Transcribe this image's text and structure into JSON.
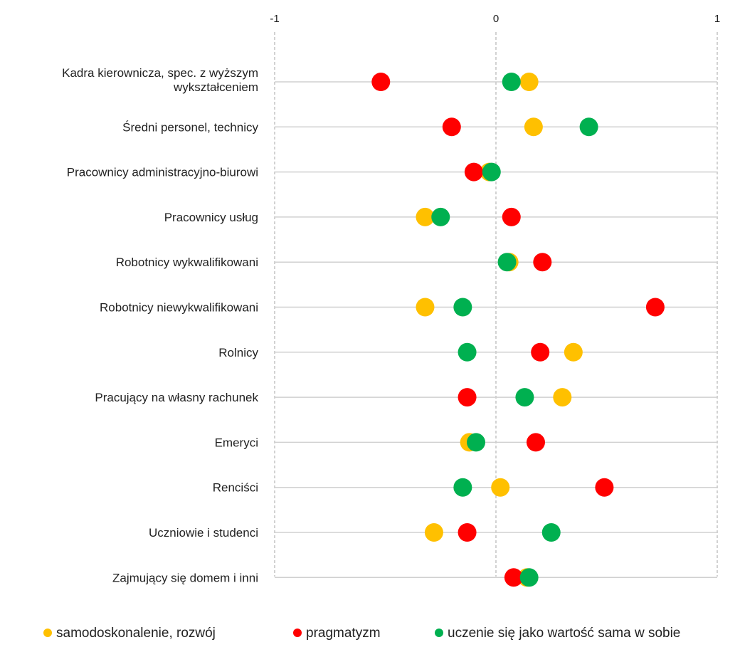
{
  "chart_data": {
    "type": "scatter",
    "orientation": "horizontal-dot-plot",
    "title": "",
    "xlabel": "",
    "ylabel": "",
    "xlim": [
      -1,
      1
    ],
    "x_ticks": [
      -1,
      0,
      1
    ],
    "x_tick_labels": [
      "-1",
      "0",
      "1"
    ],
    "grid": true,
    "legend_position": "bottom",
    "categories": [
      [
        "Kadra kierownicza, spec. z wyższym",
        "wykształceniem"
      ],
      [
        "Średni personel, technicy"
      ],
      [
        "Pracownicy administracyjno-biurowi"
      ],
      [
        "Pracownicy usług"
      ],
      [
        "Robotnicy wykwalifikowani"
      ],
      [
        "Robotnicy niewykwalifikowani"
      ],
      [
        "Rolnicy"
      ],
      [
        "Pracujący na własny rachunek"
      ],
      [
        "Emeryci"
      ],
      [
        "Renciści"
      ],
      [
        "Uczniowie i studenci"
      ],
      [
        "Zajmujący się domem i inni"
      ]
    ],
    "series": [
      {
        "name": "samodoskonalenie, rozwój",
        "color": "#FFC000",
        "values": [
          0.15,
          0.17,
          -0.03,
          -0.32,
          0.06,
          -0.32,
          0.35,
          0.3,
          -0.12,
          0.02,
          -0.28,
          0.14
        ]
      },
      {
        "name": "pragmatyzm",
        "color": "#FF0000",
        "values": [
          -0.52,
          -0.2,
          -0.1,
          0.07,
          0.21,
          0.72,
          0.2,
          -0.13,
          0.18,
          0.49,
          -0.13,
          0.08
        ]
      },
      {
        "name": "uczenie się jako wartość sama w sobie",
        "color": "#00B050",
        "values": [
          0.07,
          0.42,
          -0.02,
          -0.25,
          0.05,
          -0.15,
          -0.13,
          0.13,
          -0.09,
          -0.15,
          0.25,
          0.15
        ]
      }
    ]
  }
}
